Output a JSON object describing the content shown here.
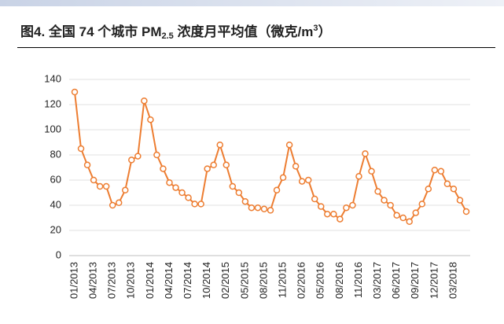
{
  "chart_data": {
    "type": "line",
    "title": [
      "图4. 全国 74 个城市 PM",
      "2.5",
      " 浓度月平均值（微克/m",
      "3",
      "）"
    ],
    "categories": [
      "01/2013",
      null,
      null,
      "04/2013",
      null,
      null,
      "07/2013",
      null,
      null,
      "10/2013",
      null,
      null,
      "01/2014",
      null,
      null,
      "04/2014",
      null,
      null,
      "07/2014",
      null,
      null,
      "10/2014",
      null,
      null,
      "02/2015",
      null,
      null,
      "05/2015",
      null,
      null,
      "08/2015",
      null,
      null,
      "11/2015",
      null,
      null,
      "02/2016",
      null,
      null,
      "05/2016",
      null,
      null,
      "08/2016",
      null,
      null,
      "11/2016",
      null,
      null,
      "03/2017",
      null,
      null,
      "06/2017",
      null,
      null,
      "09/2017",
      null,
      null,
      "12/2017",
      null,
      null,
      "03/2018",
      null,
      null
    ],
    "series": [
      {
        "color": "#ed7d31",
        "values": [
          130,
          85,
          72,
          60,
          55,
          55,
          40,
          42,
          52,
          76,
          79,
          123,
          108,
          80,
          69,
          58,
          54,
          50,
          46,
          41,
          41,
          69,
          72,
          88,
          72,
          55,
          50,
          43,
          38,
          38,
          37,
          36,
          52,
          62,
          88,
          71,
          59,
          60,
          45,
          39,
          33,
          33,
          29,
          38,
          40,
          63,
          81,
          67,
          51,
          44,
          40,
          32,
          30,
          27,
          34,
          41,
          53,
          68,
          67,
          57,
          53,
          44,
          35
        ]
      }
    ],
    "ylim": [
      0,
      140
    ],
    "yticks": [
      0,
      20,
      40,
      60,
      80,
      100,
      120,
      140
    ],
    "grid": true
  }
}
